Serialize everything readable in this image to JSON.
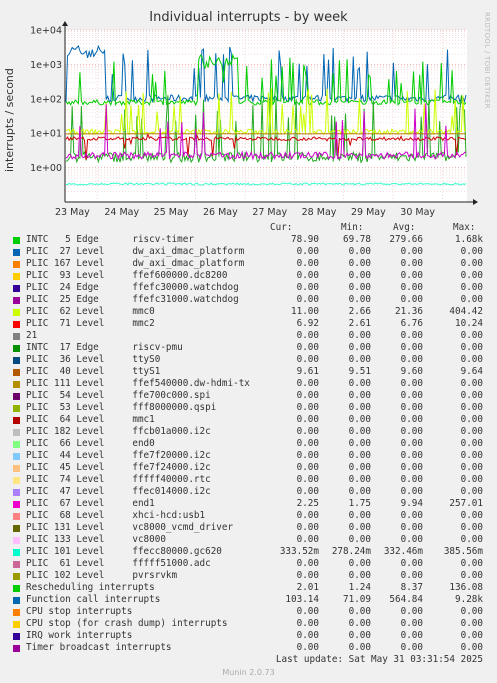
{
  "title": "Individual interrupts - by week",
  "side_credit": "RRDTOOL / TOBI OETIKER",
  "ylabel": "interrupts / second",
  "legend_headers": {
    "cur": "Cur:",
    "min": "Min:",
    "avg": "Avg:",
    "max": "Max:"
  },
  "chart_data": {
    "type": "line",
    "title": "Individual interrupts - by week",
    "ylabel": "interrupts / second",
    "yscale": "log",
    "ylim": [
      0.1,
      10000
    ],
    "y_ticks": [
      "1e+00",
      "1e+01",
      "1e+02",
      "1e+03",
      "1e+04"
    ],
    "x_ticks": [
      "23 May",
      "24 May",
      "25 May",
      "26 May",
      "27 May",
      "28 May",
      "29 May",
      "30 May"
    ],
    "grid": true,
    "series": [
      {
        "name": "INTC 5 Edge riscv-timer",
        "color": "#00cc00",
        "cur": 78.9,
        "min": 69.78,
        "avg": 279.66,
        "max": 1680
      },
      {
        "name": "PLIC 62 Level mmc0",
        "color": "#ccff00",
        "cur": 11.0,
        "min": 2.66,
        "avg": 21.36,
        "max": 404.42
      },
      {
        "name": "PLIC 71 Level mmc2",
        "color": "#cc0000",
        "cur": 6.92,
        "min": 2.61,
        "avg": 6.76,
        "max": 10.24
      },
      {
        "name": "PLIC 40 Level ttyS1",
        "color": "#b8860b",
        "cur": 9.61,
        "min": 9.51,
        "avg": 9.6,
        "max": 9.64
      },
      {
        "name": "PLIC 67 Level end1",
        "color": "#cc00cc",
        "cur": 2.25,
        "min": 1.75,
        "avg": 9.94,
        "max": 257.01
      },
      {
        "name": "PLIC 101 Level ffecc80000.gc620",
        "color": "#33ffcc",
        "cur": 0.33352,
        "min": 0.27824,
        "avg": 0.33246,
        "max": 0.38556
      },
      {
        "name": "Rescheduling interrupts",
        "color": "#22aa22",
        "cur": 2.01,
        "min": 1.24,
        "avg": 8.37,
        "max": 136.08
      },
      {
        "name": "Function call interrupts",
        "color": "#0066b3",
        "cur": 103.14,
        "min": 71.09,
        "avg": 564.84,
        "max": 9280
      }
    ]
  },
  "legend_rows": [
    {
      "label": "INTC   5 Edge      riscv-timer",
      "color": "#00cc00",
      "cur": "78.90",
      "min": "69.78",
      "avg": "279.66",
      "max": "1.68k"
    },
    {
      "label": "PLIC  27 Level     dw_axi_dmac_platform",
      "color": "#0066b3",
      "cur": "0.00",
      "min": "0.00",
      "avg": "0.00",
      "max": "0.00"
    },
    {
      "label": "PLIC 167 Level     dw_axi_dmac_platform",
      "color": "#ff8000",
      "cur": "0.00",
      "min": "0.00",
      "avg": "0.00",
      "max": "0.00"
    },
    {
      "label": "PLIC  93 Level     ffef600000.dc8200",
      "color": "#ffcc00",
      "cur": "0.00",
      "min": "0.00",
      "avg": "0.00",
      "max": "0.00"
    },
    {
      "label": "PLIC  24 Edge      ffefc30000.watchdog",
      "color": "#330099",
      "cur": "0.00",
      "min": "0.00",
      "avg": "0.00",
      "max": "0.00"
    },
    {
      "label": "PLIC  25 Edge      ffefc31000.watchdog",
      "color": "#990099",
      "cur": "0.00",
      "min": "0.00",
      "avg": "0.00",
      "max": "0.00"
    },
    {
      "label": "PLIC  62 Level     mmc0",
      "color": "#ccff00",
      "cur": "11.00",
      "min": "2.66",
      "avg": "21.36",
      "max": "404.42"
    },
    {
      "label": "PLIC  71 Level     mmc2",
      "color": "#ff0000",
      "cur": "6.92",
      "min": "2.61",
      "avg": "6.76",
      "max": "10.24"
    },
    {
      "label": "21",
      "color": "#808080",
      "cur": "0.00",
      "min": "0.00",
      "avg": "0.00",
      "max": "0.00"
    },
    {
      "label": "INTC  17 Edge      riscv-pmu",
      "color": "#008f00",
      "cur": "0.00",
      "min": "0.00",
      "avg": "0.00",
      "max": "0.00"
    },
    {
      "label": "PLIC  36 Level     ttyS0",
      "color": "#00487d",
      "cur": "0.00",
      "min": "0.00",
      "avg": "0.00",
      "max": "0.00"
    },
    {
      "label": "PLIC  40 Level     ttyS1",
      "color": "#b35a00",
      "cur": "9.61",
      "min": "9.51",
      "avg": "9.60",
      "max": "9.64"
    },
    {
      "label": "PLIC 111 Level     ffef540000.dw-hdmi-tx",
      "color": "#b38f00",
      "cur": "0.00",
      "min": "0.00",
      "avg": "0.00",
      "max": "0.00"
    },
    {
      "label": "PLIC  54 Level     ffe700c000.spi",
      "color": "#6b006b",
      "cur": "0.00",
      "min": "0.00",
      "avg": "0.00",
      "max": "0.00"
    },
    {
      "label": "PLIC  53 Level     fff8000000.qspi",
      "color": "#8fb300",
      "cur": "0.00",
      "min": "0.00",
      "avg": "0.00",
      "max": "0.00"
    },
    {
      "label": "PLIC  64 Level     mmc1",
      "color": "#b30000",
      "cur": "0.00",
      "min": "0.00",
      "avg": "0.00",
      "max": "0.00"
    },
    {
      "label": "PLIC 182 Level     ffcb01a000.i2c",
      "color": "#bebebe",
      "cur": "0.00",
      "min": "0.00",
      "avg": "0.00",
      "max": "0.00"
    },
    {
      "label": "PLIC  66 Level     end0",
      "color": "#80ff80",
      "cur": "0.00",
      "min": "0.00",
      "avg": "0.00",
      "max": "0.00"
    },
    {
      "label": "PLIC  44 Level     ffe7f20000.i2c",
      "color": "#80c9ff",
      "cur": "0.00",
      "min": "0.00",
      "avg": "0.00",
      "max": "0.00"
    },
    {
      "label": "PLIC  45 Level     ffe7f24000.i2c",
      "color": "#ffc080",
      "cur": "0.00",
      "min": "0.00",
      "avg": "0.00",
      "max": "0.00"
    },
    {
      "label": "PLIC  74 Level     fffff40000.rtc",
      "color": "#ffe680",
      "cur": "0.00",
      "min": "0.00",
      "avg": "0.00",
      "max": "0.00"
    },
    {
      "label": "PLIC  47 Level     ffec014000.i2c",
      "color": "#aa80ff",
      "cur": "0.00",
      "min": "0.00",
      "avg": "0.00",
      "max": "0.00"
    },
    {
      "label": "PLIC  67 Level     end1",
      "color": "#ee00cc",
      "cur": "2.25",
      "min": "1.75",
      "avg": "9.94",
      "max": "257.01"
    },
    {
      "label": "PLIC  68 Level     xhci-hcd:usb1",
      "color": "#ff8080",
      "cur": "0.00",
      "min": "0.00",
      "avg": "0.00",
      "max": "0.00"
    },
    {
      "label": "PLIC 131 Level     vc8000_vcmd_driver",
      "color": "#666600",
      "cur": "0.00",
      "min": "0.00",
      "avg": "0.00",
      "max": "0.00"
    },
    {
      "label": "PLIC 133 Level     vc8000",
      "color": "#ffbfff",
      "cur": "0.00",
      "min": "0.00",
      "avg": "0.00",
      "max": "0.00"
    },
    {
      "label": "PLIC 101 Level     ffecc80000.gc620",
      "color": "#00ffcc",
      "cur": "333.52m",
      "min": "278.24m",
      "avg": "332.46m",
      "max": "385.56m"
    },
    {
      "label": "PLIC  61 Level     fffff51000.adc",
      "color": "#cc6699",
      "cur": "0.00",
      "min": "0.00",
      "avg": "0.00",
      "max": "0.00"
    },
    {
      "label": "PLIC 102 Level     pvrsrvkm",
      "color": "#999900",
      "cur": "0.00",
      "min": "0.00",
      "avg": "0.00",
      "max": "0.00"
    },
    {
      "label": "Rescheduling interrupts",
      "color": "#00cc00",
      "cur": "2.01",
      "min": "1.24",
      "avg": "8.37",
      "max": "136.08"
    },
    {
      "label": "Function call interrupts",
      "color": "#0066b3",
      "cur": "103.14",
      "min": "71.09",
      "avg": "564.84",
      "max": "9.28k"
    },
    {
      "label": "CPU stop interrupts",
      "color": "#ff8000",
      "cur": "0.00",
      "min": "0.00",
      "avg": "0.00",
      "max": "0.00"
    },
    {
      "label": "CPU stop (for crash dump) interrupts",
      "color": "#ffcc00",
      "cur": "0.00",
      "min": "0.00",
      "avg": "0.00",
      "max": "0.00"
    },
    {
      "label": "IRQ work interrupts",
      "color": "#330099",
      "cur": "0.00",
      "min": "0.00",
      "avg": "0.00",
      "max": "0.00"
    },
    {
      "label": "Timer broadcast interrupts",
      "color": "#990099",
      "cur": "0.00",
      "min": "0.00",
      "avg": "0.00",
      "max": "0.00"
    }
  ],
  "last_update": "Last update: Sat May 31 03:31:54 2025",
  "footer": "Munin 2.0.73"
}
